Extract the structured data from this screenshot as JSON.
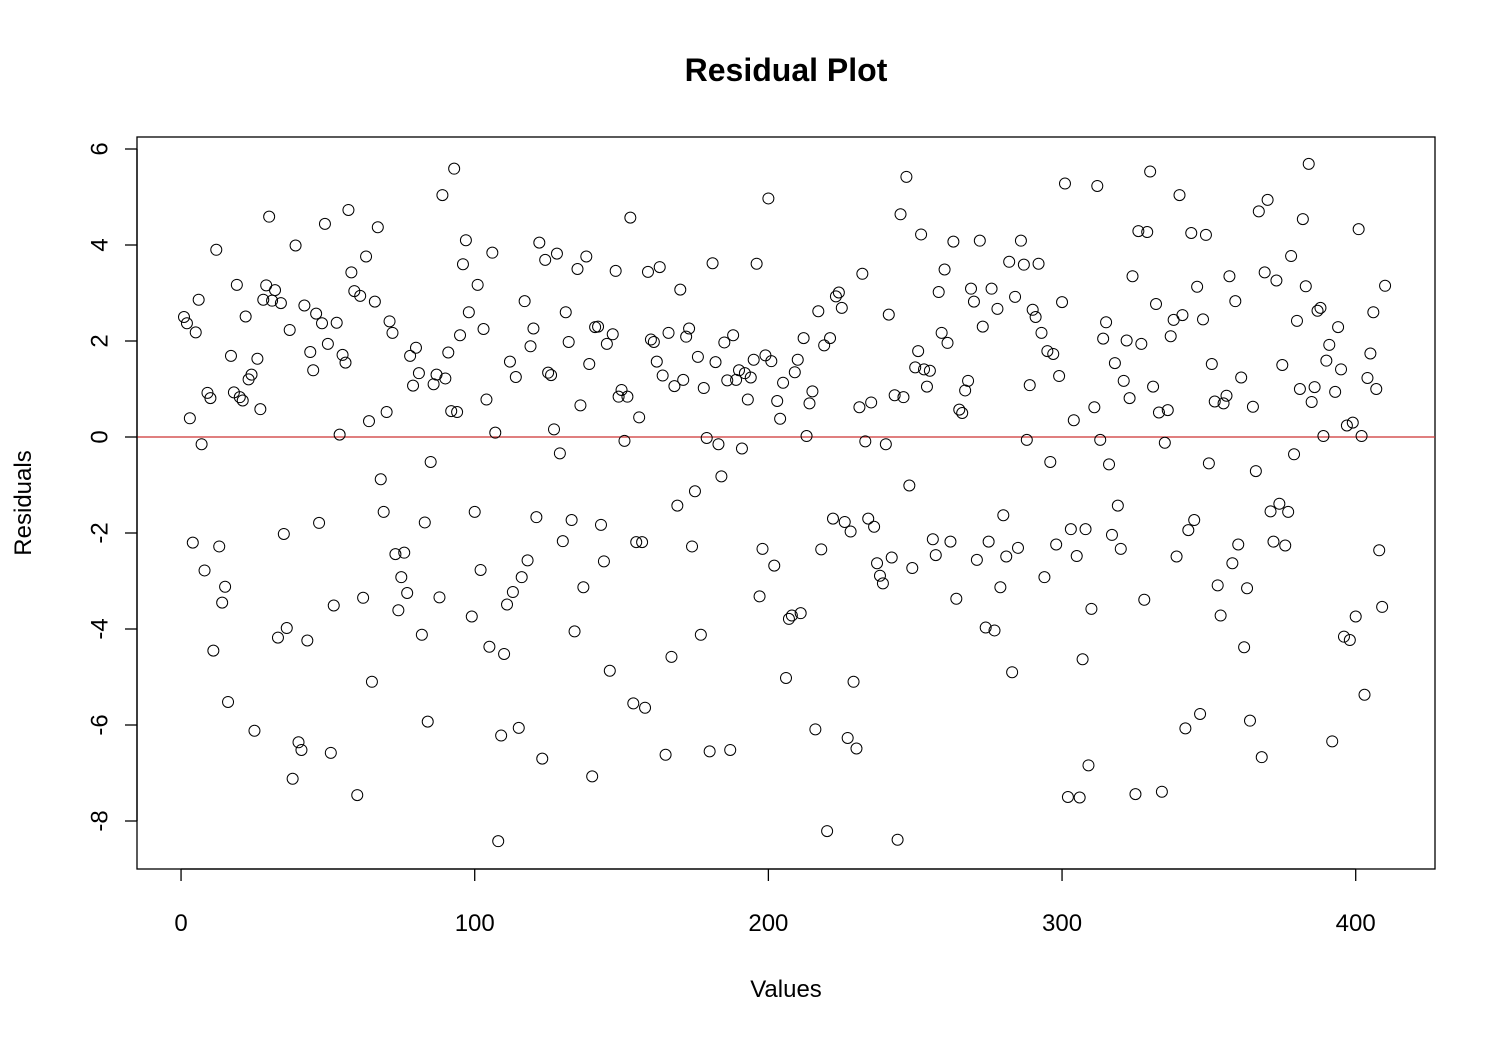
{
  "chart_data": {
    "type": "scatter",
    "title": "Residual Plot",
    "xlabel": "Values",
    "ylabel": "Residuals",
    "xlim": [
      -15,
      427
    ],
    "ylim": [
      -9,
      6.25
    ],
    "xticks": [
      0,
      100,
      200,
      300,
      400
    ],
    "yticks": [
      -8,
      -6,
      -4,
      -2,
      0,
      2,
      4,
      6
    ],
    "reference_line": {
      "y": 0,
      "color": "#cd3333"
    },
    "marker": "open-circle",
    "x": [
      1,
      2,
      3,
      4,
      5,
      6,
      7,
      8,
      9,
      10,
      11,
      12,
      13,
      14,
      15,
      16,
      17,
      18,
      19,
      20,
      21,
      22,
      23,
      24,
      25,
      26,
      27,
      28,
      29,
      30,
      31,
      32,
      33,
      34,
      35,
      36,
      37,
      38,
      39,
      40,
      41,
      42,
      43,
      44,
      45,
      46,
      47,
      48,
      49,
      50,
      51,
      52,
      53,
      54,
      55,
      56,
      57,
      58,
      59,
      60,
      61,
      62,
      63,
      64,
      65,
      66,
      67,
      68,
      69,
      70,
      71,
      72,
      73,
      74,
      75,
      76,
      77,
      78,
      79,
      80,
      81,
      82,
      83,
      84,
      85,
      86,
      87,
      88,
      89,
      90,
      91,
      92,
      93,
      94,
      95,
      96,
      97,
      98,
      99,
      100,
      101,
      102,
      103,
      104,
      105,
      106,
      107,
      108,
      109,
      110,
      111,
      112,
      113,
      114,
      115,
      116,
      117,
      118,
      119,
      120,
      121,
      122,
      123,
      124,
      125,
      126,
      127,
      128,
      129,
      130,
      131,
      132,
      133,
      134,
      135,
      136,
      137,
      138,
      139,
      140,
      141,
      142,
      143,
      144,
      145,
      146,
      147,
      148,
      149,
      150,
      151,
      152,
      153,
      154,
      155,
      156,
      157,
      158,
      159,
      160,
      161,
      162,
      163,
      164,
      165,
      166,
      167,
      168,
      169,
      170,
      171,
      172,
      173,
      174,
      175,
      176,
      177,
      178,
      179,
      180,
      181,
      182,
      183,
      184,
      185,
      186,
      187,
      188,
      189,
      190,
      191,
      192,
      193,
      194,
      195,
      196,
      197,
      198,
      199,
      200,
      201,
      202,
      203,
      204,
      205,
      206,
      207,
      208,
      209,
      210,
      211,
      212,
      213,
      214,
      215,
      216,
      217,
      218,
      219,
      220,
      221,
      222,
      223,
      224,
      225,
      226,
      227,
      228,
      229,
      230,
      231,
      232,
      233,
      234,
      235,
      236,
      237,
      238,
      239,
      240,
      241,
      242,
      243,
      244,
      245,
      246,
      247,
      248,
      249,
      250,
      251,
      252,
      253,
      254,
      255,
      256,
      257,
      258,
      259,
      260,
      261,
      262,
      263,
      264,
      265,
      266,
      267,
      268,
      269,
      270,
      271,
      272,
      273,
      274,
      275,
      276,
      277,
      278,
      279,
      280,
      281,
      282,
      283,
      284,
      285,
      286,
      287,
      288,
      289,
      290,
      291,
      292,
      293,
      294,
      295,
      296,
      297,
      298,
      299,
      300,
      301,
      302,
      303,
      304,
      305,
      306,
      307,
      308,
      309,
      310,
      311,
      312,
      313,
      314,
      315,
      316,
      317,
      318,
      319,
      320,
      321,
      322,
      323,
      324,
      325,
      326,
      327,
      328,
      329,
      330,
      331,
      332,
      333,
      334,
      335,
      336,
      337,
      338,
      339,
      340,
      341,
      342,
      343,
      344,
      345,
      346,
      347,
      348,
      349,
      350,
      351,
      352,
      353,
      354,
      355,
      356,
      357,
      358,
      359,
      360,
      361,
      362,
      363,
      364,
      365,
      366,
      367,
      368,
      369,
      370,
      371,
      372,
      373,
      374,
      375,
      376,
      377,
      378,
      379,
      380,
      381,
      382,
      383,
      384,
      385,
      386,
      387,
      388,
      389,
      390,
      391,
      392,
      393,
      394,
      395,
      396,
      397,
      398,
      399,
      400,
      401,
      402,
      403,
      404,
      405,
      406,
      407,
      408,
      409,
      410
    ],
    "y": [
      2.5,
      2.37,
      0.39,
      -2.2,
      2.18,
      2.86,
      -0.15,
      -2.78,
      0.92,
      0.81,
      -4.45,
      3.9,
      -2.28,
      -3.45,
      -3.12,
      -5.52,
      1.69,
      0.93,
      3.17,
      0.83,
      0.76,
      2.51,
      1.2,
      1.3,
      -6.12,
      1.63,
      0.58,
      2.86,
      3.16,
      4.59,
      2.84,
      3.06,
      -4.18,
      2.79,
      -2.02,
      -3.98,
      2.23,
      -7.12,
      3.99,
      -6.36,
      -6.52,
      2.74,
      -4.24,
      1.77,
      1.39,
      2.57,
      -1.79,
      2.37,
      4.44,
      1.94,
      -6.58,
      -3.51,
      2.38,
      0.05,
      1.71,
      1.55,
      4.73,
      3.43,
      3.04,
      -7.46,
      2.94,
      -3.35,
      3.76,
      0.33,
      -5.1,
      2.82,
      4.37,
      -0.88,
      -1.56,
      0.52,
      2.41,
      2.17,
      -2.44,
      -3.61,
      -2.92,
      -2.41,
      -3.25,
      1.69,
      1.07,
      1.86,
      1.33,
      -4.12,
      -1.78,
      -5.93,
      -0.52,
      1.1,
      1.3,
      -3.34,
      5.04,
      1.22,
      1.76,
      0.54,
      5.59,
      0.52,
      2.12,
      3.6,
      4.1,
      2.6,
      -3.74,
      -1.56,
      3.17,
      -2.77,
      2.25,
      0.78,
      -4.37,
      3.84,
      0.09,
      -8.42,
      -6.22,
      -4.52,
      -3.49,
      1.57,
      -3.23,
      1.25,
      -6.06,
      -2.92,
      2.83,
      -2.57,
      1.89,
      2.26,
      -1.67,
      4.05,
      -6.7,
      3.69,
      1.34,
      1.29,
      0.16,
      3.82,
      -0.34,
      -2.17,
      2.6,
      1.98,
      -1.73,
      -4.05,
      3.5,
      0.66,
      -3.13,
      3.76,
      1.52,
      -7.07,
      2.29,
      2.3,
      -1.83,
      -2.59,
      1.94,
      -4.87,
      2.14,
      3.46,
      0.84,
      0.98,
      -0.08,
      0.84,
      4.57,
      -5.55,
      -2.19,
      0.41,
      -2.19,
      -5.64,
      3.44,
      2.03,
      1.98,
      1.57,
      3.54,
      1.28,
      -6.62,
      2.17,
      -4.58,
      1.06,
      -1.43,
      3.07,
      1.19,
      2.09,
      2.26,
      -2.28,
      -1.13,
      1.67,
      -4.12,
      1.02,
      -0.02,
      -6.55,
      3.62,
      1.56,
      -0.15,
      -0.82,
      1.97,
      1.18,
      -6.52,
      2.12,
      1.19,
      1.39,
      -0.24,
      1.33,
      0.78,
      1.24,
      1.61,
      3.61,
      -3.32,
      -2.33,
      1.7,
      4.97,
      1.58,
      -2.68,
      0.75,
      0.38,
      1.13,
      -5.02,
      -3.79,
      -3.72,
      1.35,
      1.61,
      -3.67,
      2.06,
      0.02,
      0.7,
      0.95,
      -6.09,
      2.62,
      -2.34,
      1.91,
      -8.21,
      2.06,
      -1.7,
      2.93,
      3.01,
      2.69,
      -1.77,
      -6.27,
      -1.97,
      -5.1,
      -6.49,
      0.62,
      3.4,
      -0.09,
      -1.7,
      0.72,
      -1.87,
      -2.63,
      -2.89,
      -3.05,
      -0.15,
      2.55,
      -2.51,
      0.87,
      -8.39,
      4.64,
      0.83,
      5.42,
      -1.01,
      -2.73,
      1.45,
      1.79,
      4.22,
      1.41,
      1.05,
      1.38,
      -2.13,
      -2.46,
      3.02,
      2.17,
      3.49,
      1.96,
      -2.18,
      4.07,
      -3.37,
      0.57,
      0.5,
      0.97,
      1.17,
      3.09,
      2.82,
      -2.56,
      4.09,
      2.3,
      -3.97,
      -2.18,
      3.09,
      -4.03,
      2.67,
      -3.13,
      -1.63,
      -2.49,
      3.65,
      -4.9,
      2.92,
      -2.31,
      4.09,
      3.59,
      -0.06,
      1.08,
      2.65,
      2.5,
      3.61,
      2.17,
      -2.92,
      1.79,
      -0.52,
      1.73,
      -2.24,
      1.27,
      2.81,
      5.28,
      -7.5,
      -1.92,
      0.35,
      -2.48,
      -7.51,
      -4.63,
      -1.92,
      -6.84,
      -3.58,
      0.62,
      5.23,
      -0.06,
      2.05,
      2.39,
      -0.57,
      -2.04,
      1.54,
      -1.43,
      -2.33,
      1.17,
      2.01,
      0.81,
      3.35,
      -7.44,
      4.29,
      1.94,
      -3.39,
      4.27,
      5.53,
      1.05,
      2.77,
      0.51,
      -7.39,
      -0.12,
      0.56,
      2.1,
      2.44,
      -2.49,
      5.04,
      2.54,
      -6.07,
      -1.94,
      4.25,
      -1.73,
      3.13,
      -5.77,
      2.45,
      4.21,
      -0.55,
      1.52,
      0.74,
      -3.09,
      -3.72,
      0.7,
      0.86,
      3.35,
      -2.63,
      2.83,
      -2.24,
      1.24,
      -4.38,
      -3.15,
      -5.91,
      0.63,
      -0.71,
      4.7,
      -6.67,
      3.43,
      4.94,
      -1.55,
      -2.18,
      3.26,
      -1.39,
      1.5,
      -2.26,
      -1.56,
      3.77,
      -0.36,
      2.42,
      1.0,
      4.54,
      3.14,
      5.69,
      0.73,
      1.04,
      2.63,
      2.69,
      0.02,
      1.59,
      1.92,
      -6.34,
      0.94,
      2.29,
      1.41,
      -4.16,
      0.24,
      -4.23,
      0.3,
      -3.74,
      4.33,
      0.02,
      -5.37,
      1.23,
      1.74,
      2.6,
      1.0,
      -2.36,
      -3.54,
      3.15
    ]
  }
}
